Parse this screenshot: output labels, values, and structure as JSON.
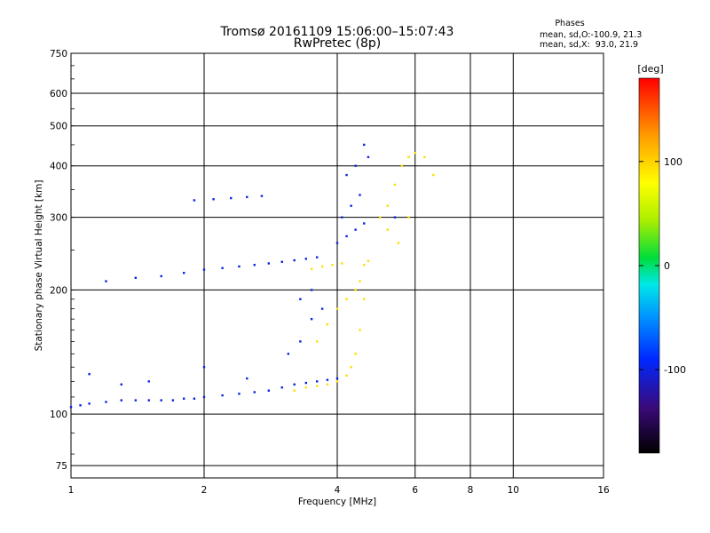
{
  "chart_data": {
    "type": "scatter",
    "title": "Tromsø 20161109 15:06:00–15:07:43",
    "subtitle": "RwPretec (8p)",
    "xlabel": "Frequency [MHz]",
    "ylabel": "Stationary phase Virtual Height [km]",
    "x_scale": "log",
    "y_scale": "log",
    "xlim": [
      1,
      16
    ],
    "ylim": [
      70,
      750
    ],
    "x_ticks": [
      1,
      2,
      4,
      6,
      8,
      10,
      16
    ],
    "x_tick_labels": [
      "1",
      "2",
      "4",
      "6",
      "8",
      "10",
      "16"
    ],
    "y_ticks": [
      75,
      100,
      200,
      300,
      400,
      500,
      600,
      750
    ],
    "y_tick_labels": [
      "75",
      "100",
      "200",
      "300",
      "400",
      "500",
      "600",
      "750"
    ],
    "grid": true,
    "phase_stats": {
      "heading": "Phases",
      "o_line": "mean, sd,O:-100.9, 21.3",
      "x_line": "mean, sd,X:  93.0, 21.9"
    },
    "colorbar": {
      "title": "[deg]",
      "range": [
        -180,
        180
      ],
      "ticks": [
        100,
        0,
        -100
      ],
      "tick_labels": [
        "100",
        "0",
        "-100"
      ]
    },
    "series": [
      {
        "name": "O",
        "color_phase": -100,
        "x": [
          1.0,
          1.05,
          1.1,
          1.2,
          1.3,
          1.4,
          1.5,
          1.6,
          1.7,
          1.8,
          1.9,
          2.0,
          2.2,
          2.4,
          2.6,
          2.8,
          3.0,
          3.2,
          3.4,
          3.6,
          3.8,
          4.0,
          1.2,
          1.4,
          1.6,
          1.8,
          2.0,
          2.2,
          2.4,
          2.6,
          2.8,
          3.0,
          3.2,
          3.4,
          3.6,
          1.9,
          2.1,
          2.3,
          2.5,
          2.7,
          1.1,
          1.3,
          1.5,
          2.0,
          2.5,
          3.1,
          3.3,
          3.5,
          3.7,
          3.3,
          3.5,
          4.0,
          4.2,
          4.4,
          4.6,
          4.1,
          4.3,
          4.5,
          4.2,
          4.4,
          4.7,
          4.6,
          5.4
        ],
        "y": [
          104,
          105,
          106,
          107,
          108,
          108,
          108,
          108,
          108,
          109,
          109,
          110,
          111,
          112,
          113,
          114,
          116,
          118,
          119,
          120,
          121,
          122,
          210,
          214,
          216,
          220,
          224,
          226,
          228,
          230,
          232,
          234,
          236,
          238,
          240,
          330,
          332,
          334,
          336,
          338,
          125,
          118,
          120,
          130,
          122,
          140,
          150,
          170,
          180,
          190,
          200,
          260,
          270,
          280,
          290,
          300,
          320,
          340,
          380,
          400,
          420,
          450,
          300
        ]
      },
      {
        "name": "X",
        "color_phase": 95,
        "x": [
          3.2,
          3.4,
          3.6,
          3.8,
          4.0,
          4.2,
          4.3,
          4.4,
          4.5,
          4.6,
          3.6,
          3.8,
          4.0,
          4.2,
          4.4,
          4.5,
          4.6,
          4.7,
          3.5,
          3.7,
          3.9,
          4.1,
          5.0,
          5.2,
          5.4,
          5.6,
          5.8,
          6.0,
          6.3,
          6.6,
          5.2,
          5.5,
          5.8
        ],
        "y": [
          114,
          116,
          117,
          118,
          120,
          124,
          130,
          140,
          160,
          190,
          150,
          165,
          180,
          190,
          200,
          210,
          230,
          235,
          225,
          228,
          230,
          232,
          300,
          320,
          360,
          400,
          420,
          430,
          420,
          380,
          280,
          260,
          300
        ]
      }
    ]
  }
}
